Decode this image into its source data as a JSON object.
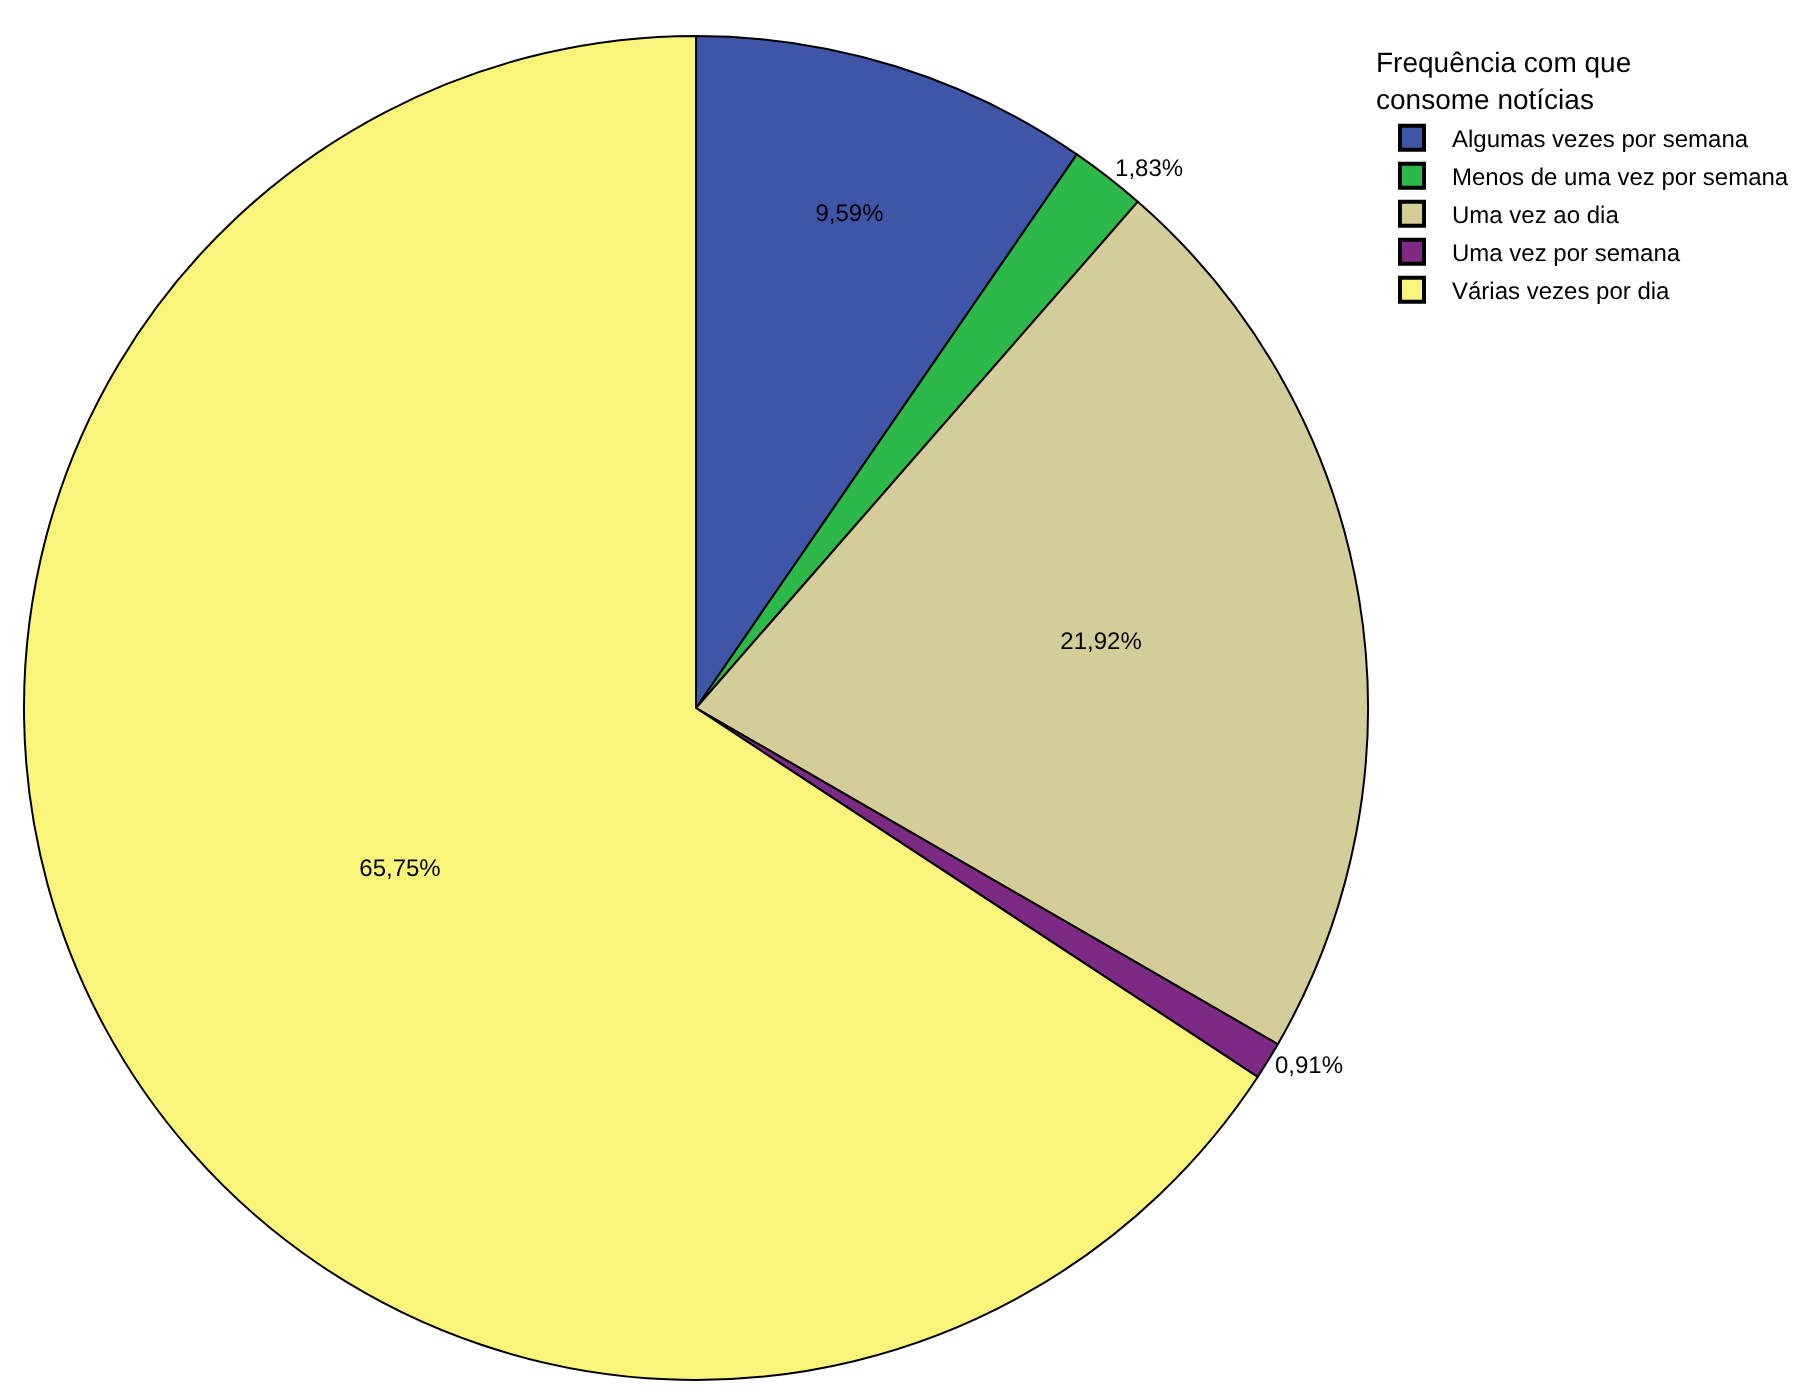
{
  "chart_data": {
    "type": "pie",
    "legend_title": "Frequência com que consome notícias",
    "categories": [
      "Algumas vezes por semana",
      "Menos de uma vez por semana",
      "Uma vez ao dia",
      "Uma vez por semana",
      "Várias vezes por dia"
    ],
    "values": [
      9.59,
      1.83,
      21.92,
      0.91,
      65.75
    ],
    "value_labels": [
      "9,59%",
      "1,83%",
      "21,92%",
      "0,91%",
      "65,75%"
    ],
    "colors": [
      "#3f56a8",
      "#2db84a",
      "#d4cc99",
      "#7d2a84",
      "#f9f57a"
    ],
    "legend": "top right"
  }
}
